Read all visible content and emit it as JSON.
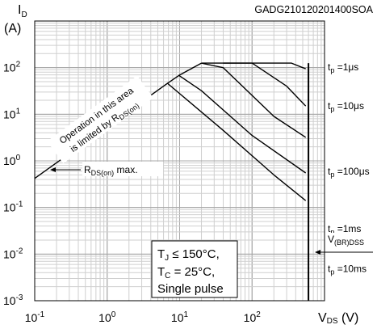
{
  "chart_data": {
    "type": "line",
    "title": "GADG210120201400SOA",
    "x_scale": "log",
    "y_scale": "log",
    "xlim": [
      0.1,
      1000
    ],
    "ylim": [
      0.001,
      1000
    ],
    "ylabel": {
      "main": "I",
      "sub": "D",
      "unit": "(A)"
    },
    "xlabel": {
      "main": "V",
      "sub": "DS",
      "unit": " (V)"
    },
    "x_ticks": [
      {
        "value": 0.1,
        "base": "10",
        "exp": "-1"
      },
      {
        "value": 1,
        "base": "10",
        "exp": "0"
      },
      {
        "value": 10,
        "base": "10",
        "exp": "1"
      },
      {
        "value": 100,
        "base": "10",
        "exp": "2"
      }
    ],
    "y_ticks": [
      {
        "value": 100,
        "base": "10",
        "exp": "2"
      },
      {
        "value": 10,
        "base": "10",
        "exp": "1"
      },
      {
        "value": 1,
        "base": "10",
        "exp": "0"
      },
      {
        "value": 0.1,
        "base": "10",
        "exp": "-1"
      },
      {
        "value": 0.01,
        "base": "10",
        "exp": "-2"
      },
      {
        "value": 0.001,
        "base": "10",
        "exp": "-3"
      }
    ],
    "series": [
      {
        "name": "RDS(on) max.",
        "points": [
          [
            0.1,
            0.42
          ],
          [
            6.8,
            46
          ],
          [
            9.8,
            68
          ],
          [
            20,
            125
          ]
        ]
      },
      {
        "name": "tp =1μs",
        "points": [
          [
            20,
            125
          ],
          [
            350,
            125
          ],
          [
            500,
            100
          ],
          [
            550,
            95
          ]
        ]
      },
      {
        "name": "tp =10μs",
        "points": [
          [
            6.8,
            46
          ],
          [
            40,
            4.5
          ],
          [
            200,
            0.5
          ],
          [
            550,
            0.14
          ]
        ]
      },
      {
        "name": "tp =100μs",
        "points": [
          [
            9.8,
            68
          ],
          [
            20,
            32
          ],
          [
            100,
            3.5
          ],
          [
            550,
            0.55
          ]
        ]
      },
      {
        "name": "tp =1ms",
        "points": [
          [
            20,
            125
          ],
          [
            40,
            100
          ],
          [
            200,
            9
          ],
          [
            550,
            3.2
          ]
        ]
      },
      {
        "name": "tp =10ms",
        "points": [
          [
            40,
            125
          ],
          [
            100,
            125
          ],
          [
            300,
            40
          ],
          [
            550,
            15
          ]
        ]
      },
      {
        "name": "V(BR)DSS",
        "points": [
          [
            600,
            0.001
          ],
          [
            600,
            125
          ]
        ]
      }
    ],
    "curve_labels": [
      {
        "prefix": "t",
        "sub": "p",
        "text": " =1μs",
        "y": 95
      },
      {
        "prefix": "t",
        "sub": "p",
        "text": " =10μs",
        "y": 14
      },
      {
        "prefix": "t",
        "sub": "p",
        "text": " =100μs",
        "y": 0.55
      },
      {
        "prefix": "t",
        "sub": "p",
        "text": " =1ms",
        "y": 0.032
      },
      {
        "prefix": "t",
        "sub": "p",
        "text": " =10ms",
        "y": 0.0045
      }
    ],
    "annotations": {
      "rds_max": {
        "main": "R",
        "sub": "DS(on)",
        "suffix": " max."
      },
      "operation_line1": "Operation in this area",
      "operation_line2_prefix": "is limited by R",
      "operation_line2_sub": "DS(on)",
      "operation_line2_suffix": "",
      "vbr": {
        "main": "V",
        "sub": "(BR)DSS"
      },
      "conditions": {
        "line1_main": "T",
        "line1_sub": "J",
        "line1_rest": " ≤ 150°C,",
        "line2_main": "T",
        "line2_sub": "C",
        "line2_rest": " = 25°C,",
        "line3": "Single pulse"
      }
    }
  }
}
